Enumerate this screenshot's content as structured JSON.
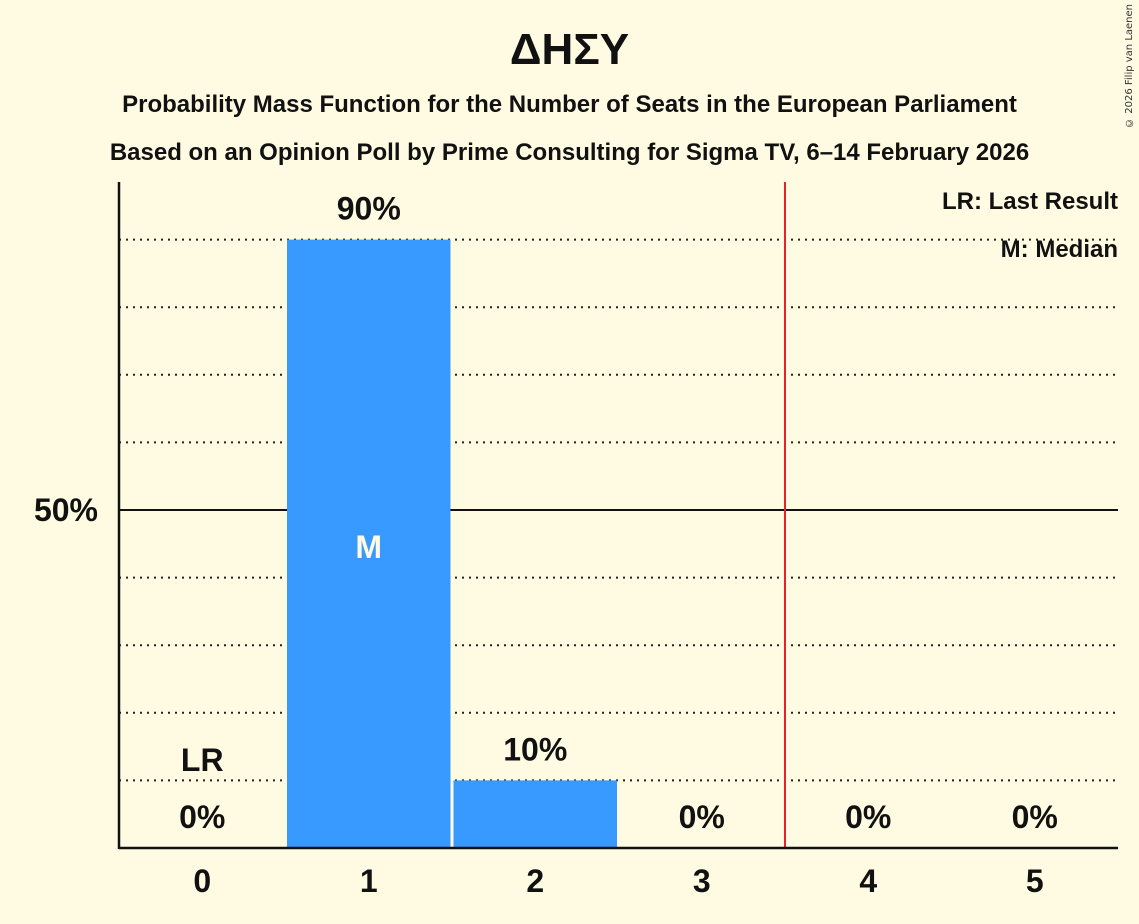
{
  "header": {
    "title": "ΔΗΣΥ",
    "subtitle1": "Probability Mass Function for the Number of Seats in the European Parliament",
    "subtitle2": "Based on an Opinion Poll by Prime Consulting for Sigma TV, 6–14 February 2026",
    "copyright": "© 2026 Filip van Laenen"
  },
  "legend": {
    "lr": "LR: Last Result",
    "m": "M: Median"
  },
  "colors": {
    "background": "#fffbe2",
    "bar": "#3899ff",
    "majority_line": "#e8202a",
    "text": "#111111"
  },
  "chart_data": {
    "type": "bar",
    "title": "ΔΗΣΥ",
    "subtitle": [
      "Probability Mass Function for the Number of Seats in the European Parliament",
      "Based on an Opinion Poll by Prime Consulting for Sigma TV, 6–14 February 2026"
    ],
    "xlabel": "",
    "ylabel": "",
    "categories": [
      "0",
      "1",
      "2",
      "3",
      "4",
      "5"
    ],
    "values": [
      0,
      90,
      10,
      0,
      0,
      0
    ],
    "value_labels": [
      "0%",
      "90%",
      "10%",
      "0%",
      "0%",
      "0%"
    ],
    "ylim": [
      0,
      100
    ],
    "yticks": [
      {
        "value": 50,
        "label": "50%"
      }
    ],
    "gridlines": [
      10,
      20,
      30,
      40,
      60,
      70,
      80,
      90
    ],
    "grid": "dotted",
    "annotations": [
      {
        "category": "0",
        "label": "LR",
        "meaning": "Last Result"
      },
      {
        "category": "1",
        "label": "M",
        "meaning": "Median"
      }
    ],
    "threshold_line": {
      "between": [
        "3",
        "4"
      ],
      "color": "#e8202a"
    },
    "legend": [
      "LR: Last Result",
      "M: Median"
    ],
    "legend_position": "top-right"
  }
}
